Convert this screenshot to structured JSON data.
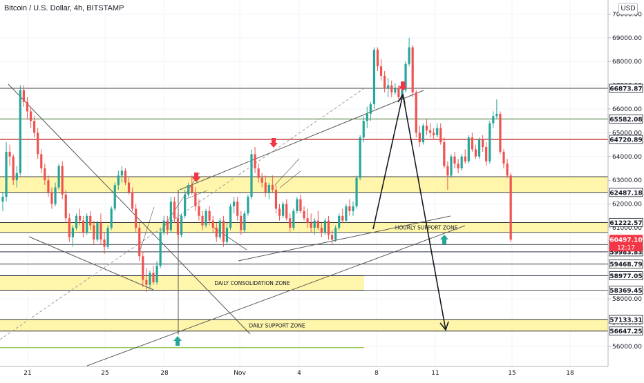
{
  "header": {
    "title": "Bitcoin / U.S. Dollar, 4h, BITSTAMP",
    "currency_badge": "USD"
  },
  "colors": {
    "up": "#26a69a",
    "down": "#ef5350",
    "zone_fill": "#fff59d",
    "grid": "#f0f3fa",
    "level_line": "#131722",
    "axis_text": "#131722",
    "arrow_red": "#f23645",
    "arrow_green": "#26a69a",
    "last_price_bg": "#f23645",
    "resistance_line": "#b71c1c",
    "support_green_line": "#8bc34a"
  },
  "chart_data": {
    "type": "candlestick",
    "symbol": "Bitcoin / U.S. Dollar",
    "interval": "4h",
    "exchange": "BITSTAMP",
    "y_ticks": [
      56000,
      57000,
      58000,
      59000,
      60000,
      61000,
      62000,
      63000,
      64000,
      65000,
      66000,
      67000,
      68000,
      69000,
      70000
    ],
    "ylim": [
      55400,
      70400
    ],
    "x_ticks": [
      "21",
      "25",
      "28",
      "Nov",
      "4",
      "8",
      "11",
      "15",
      "18"
    ],
    "price_levels": [
      {
        "label": "66873.87",
        "value": 66873.87
      },
      {
        "label": "65582.08",
        "value": 65582.08
      },
      {
        "label": "64720.89",
        "value": 64720.89
      },
      {
        "label": "62487.18",
        "value": 62487.18
      },
      {
        "label": "61222.57",
        "value": 61222.57
      },
      {
        "label": "60295.05",
        "value": 60295.05
      },
      {
        "label": "59983.83",
        "value": 59983.83
      },
      {
        "label": "59468.79",
        "value": 59468.79
      },
      {
        "label": "58977.05",
        "value": 58977.05
      },
      {
        "label": "58369.45",
        "value": 58369.45
      },
      {
        "label": "57133.31",
        "value": 57133.31
      },
      {
        "label": "56647.25",
        "value": 56647.25
      }
    ],
    "last_price": {
      "value": 60497.1,
      "label": "60497.10",
      "countdown": "12:17"
    },
    "zones": [
      {
        "label": "",
        "from": 62487.18,
        "to": 63150
      },
      {
        "label": "HOURLY SUPPORT ZONE",
        "from": 60800,
        "to": 61222.57
      },
      {
        "label": "DAILY CONSOLIDATION ZONE",
        "from": 58369.45,
        "to": 58977.05
      },
      {
        "label": "DAILY SUPPORT ZONE",
        "from": 56647.25,
        "to": 57133.31
      }
    ],
    "candles": [
      [
        62100,
        62500,
        61700,
        62300
      ],
      [
        62300,
        64600,
        62100,
        64200
      ],
      [
        64200,
        64500,
        63600,
        64000
      ],
      [
        64000,
        64100,
        62800,
        63000
      ],
      [
        63000,
        63600,
        62700,
        63300
      ],
      [
        63300,
        67000,
        63200,
        66800
      ],
      [
        66800,
        67000,
        66100,
        66300
      ],
      [
        66300,
        66500,
        65600,
        65900
      ],
      [
        65900,
        66100,
        65200,
        65500
      ],
      [
        65500,
        65700,
        64800,
        65000
      ],
      [
        65000,
        65200,
        63900,
        64100
      ],
      [
        64100,
        64300,
        63300,
        63500
      ],
      [
        63500,
        63700,
        62800,
        63000
      ],
      [
        63000,
        63200,
        62300,
        62500
      ],
      [
        62500,
        62700,
        61800,
        62000
      ],
      [
        62000,
        62900,
        61900,
        62700
      ],
      [
        62700,
        63700,
        62600,
        63600
      ],
      [
        63600,
        63800,
        62200,
        62400
      ],
      [
        62400,
        62600,
        61200,
        61400
      ],
      [
        61400,
        61600,
        60400,
        60600
      ],
      [
        60600,
        61100,
        60200,
        61000
      ],
      [
        61000,
        61600,
        60900,
        61500
      ],
      [
        61500,
        61800,
        61100,
        61300
      ],
      [
        61300,
        61500,
        60600,
        60800
      ],
      [
        60800,
        61600,
        60700,
        61500
      ],
      [
        61500,
        61700,
        60900,
        61100
      ],
      [
        61100,
        61300,
        60300,
        60500
      ],
      [
        60500,
        61300,
        60400,
        61200
      ],
      [
        61200,
        61600,
        60300,
        60500
      ],
      [
        60500,
        60800,
        59900,
        60200
      ],
      [
        60200,
        61100,
        60100,
        61000
      ],
      [
        61000,
        61900,
        60900,
        61800
      ],
      [
        61800,
        62900,
        61700,
        62800
      ],
      [
        62800,
        63400,
        62600,
        63200
      ],
      [
        63200,
        63600,
        62900,
        63400
      ],
      [
        63400,
        63500,
        62800,
        62900
      ],
      [
        62900,
        63100,
        62400,
        62500
      ],
      [
        62500,
        62700,
        61700,
        61800
      ],
      [
        61800,
        62000,
        60800,
        61000
      ],
      [
        61000,
        61200,
        59600,
        59800
      ],
      [
        59800,
        60000,
        58500,
        58800
      ],
      [
        58800,
        59300,
        58300,
        58600
      ],
      [
        58600,
        59200,
        58400,
        59100
      ],
      [
        59100,
        59400,
        58600,
        58700
      ],
      [
        58700,
        59600,
        58600,
        59400
      ],
      [
        59400,
        61000,
        59300,
        60800
      ],
      [
        60800,
        61500,
        60700,
        61300
      ],
      [
        61300,
        61500,
        60700,
        60900
      ],
      [
        60900,
        62300,
        60800,
        62100
      ],
      [
        62100,
        62300,
        61200,
        61400
      ],
      [
        61400,
        61600,
        60500,
        60700
      ],
      [
        60700,
        61600,
        60600,
        61500
      ],
      [
        61500,
        62600,
        61400,
        62400
      ],
      [
        62400,
        62900,
        62300,
        62800
      ],
      [
        62800,
        63200,
        62400,
        62500
      ],
      [
        62500,
        62700,
        61700,
        61900
      ],
      [
        61900,
        62200,
        61300,
        61500
      ],
      [
        61500,
        61700,
        60900,
        61100
      ],
      [
        61100,
        61800,
        61000,
        61700
      ],
      [
        61700,
        61900,
        61100,
        61300
      ],
      [
        61300,
        61500,
        60800,
        61000
      ],
      [
        61000,
        61200,
        60400,
        60600
      ],
      [
        60600,
        61400,
        60500,
        61300
      ],
      [
        61300,
        61500,
        60200,
        60400
      ],
      [
        60400,
        61200,
        60300,
        61000
      ],
      [
        61000,
        62000,
        60900,
        61900
      ],
      [
        61900,
        62300,
        61600,
        62100
      ],
      [
        62100,
        62300,
        61300,
        61500
      ],
      [
        61500,
        61700,
        60700,
        60900
      ],
      [
        60900,
        61700,
        60800,
        61600
      ],
      [
        61600,
        62400,
        61500,
        62300
      ],
      [
        62300,
        64300,
        62200,
        64100
      ],
      [
        64100,
        64400,
        63300,
        63500
      ],
      [
        63500,
        63700,
        62900,
        63100
      ],
      [
        63100,
        63300,
        62700,
        62900
      ],
      [
        62900,
        63200,
        62300,
        62500
      ],
      [
        62500,
        62900,
        62200,
        62800
      ],
      [
        62800,
        63200,
        62500,
        62600
      ],
      [
        62600,
        62800,
        61600,
        61800
      ],
      [
        61800,
        62000,
        61300,
        61500
      ],
      [
        61500,
        62100,
        61400,
        62000
      ],
      [
        62000,
        62200,
        61300,
        61400
      ],
      [
        61400,
        61600,
        60800,
        61000
      ],
      [
        61000,
        61800,
        60900,
        61700
      ],
      [
        61700,
        62300,
        61600,
        62200
      ],
      [
        62200,
        62400,
        61600,
        61700
      ],
      [
        61700,
        61900,
        61300,
        61400
      ],
      [
        61400,
        61800,
        61000,
        61200
      ],
      [
        61200,
        61600,
        60800,
        61000
      ],
      [
        61000,
        61400,
        60700,
        61300
      ],
      [
        61300,
        61700,
        60900,
        61000
      ],
      [
        61000,
        61200,
        60600,
        60800
      ],
      [
        60800,
        61400,
        60700,
        61300
      ],
      [
        61300,
        61500,
        60500,
        60700
      ],
      [
        60700,
        60900,
        60300,
        60500
      ],
      [
        60500,
        61100,
        60400,
        61000
      ],
      [
        61000,
        61600,
        60900,
        61500
      ],
      [
        61500,
        61800,
        61200,
        61300
      ],
      [
        61300,
        62000,
        61200,
        61900
      ],
      [
        61900,
        62200,
        61500,
        61700
      ],
      [
        61700,
        62100,
        61500,
        61900
      ],
      [
        61900,
        63200,
        61800,
        63100
      ],
      [
        63100,
        64900,
        63000,
        64800
      ],
      [
        64800,
        65700,
        64600,
        65500
      ],
      [
        65500,
        66100,
        65200,
        65800
      ],
      [
        65800,
        66300,
        65500,
        66200
      ],
      [
        66200,
        68600,
        66000,
        68500
      ],
      [
        68500,
        68600,
        67600,
        67800
      ],
      [
        67800,
        68100,
        67200,
        67400
      ],
      [
        67400,
        67600,
        66700,
        66900
      ],
      [
        66900,
        67300,
        66500,
        67000
      ],
      [
        67000,
        67200,
        66500,
        66700
      ],
      [
        66700,
        67100,
        66600,
        66900
      ],
      [
        66900,
        67000,
        66400,
        66500
      ],
      [
        66500,
        66900,
        66400,
        66800
      ],
      [
        66800,
        68000,
        66700,
        67900
      ],
      [
        67900,
        69000,
        67800,
        68600
      ],
      [
        68600,
        68700,
        66500,
        66700
      ],
      [
        66700,
        66800,
        64800,
        65000
      ],
      [
        65000,
        65300,
        64400,
        64600
      ],
      [
        64600,
        65400,
        64500,
        65300
      ],
      [
        65300,
        65600,
        64900,
        65100
      ],
      [
        65100,
        65400,
        64800,
        65000
      ],
      [
        65000,
        65200,
        64700,
        64900
      ],
      [
        64900,
        65400,
        64800,
        65200
      ],
      [
        65200,
        65400,
        64500,
        64600
      ],
      [
        64600,
        64800,
        63500,
        63600
      ],
      [
        63600,
        63800,
        62600,
        63200
      ],
      [
        63200,
        64100,
        63100,
        64000
      ],
      [
        64000,
        64200,
        63500,
        63700
      ],
      [
        63700,
        63900,
        63300,
        63500
      ],
      [
        63500,
        64100,
        63400,
        64000
      ],
      [
        64000,
        64300,
        63700,
        63800
      ],
      [
        63800,
        64900,
        63700,
        64800
      ],
      [
        64800,
        65000,
        64200,
        64300
      ],
      [
        64300,
        64500,
        63900,
        64000
      ],
      [
        64000,
        64800,
        63900,
        64700
      ],
      [
        64700,
        64900,
        64200,
        64400
      ],
      [
        64400,
        64600,
        63600,
        63800
      ],
      [
        63800,
        65500,
        63700,
        65400
      ],
      [
        65400,
        65900,
        65200,
        65700
      ],
      [
        65700,
        66400,
        65600,
        65800
      ],
      [
        65800,
        65900,
        64100,
        64200
      ],
      [
        64200,
        64300,
        63500,
        63700
      ],
      [
        63700,
        63900,
        63100,
        63200
      ],
      [
        63200,
        63300,
        60400,
        60497.1
      ]
    ]
  }
}
